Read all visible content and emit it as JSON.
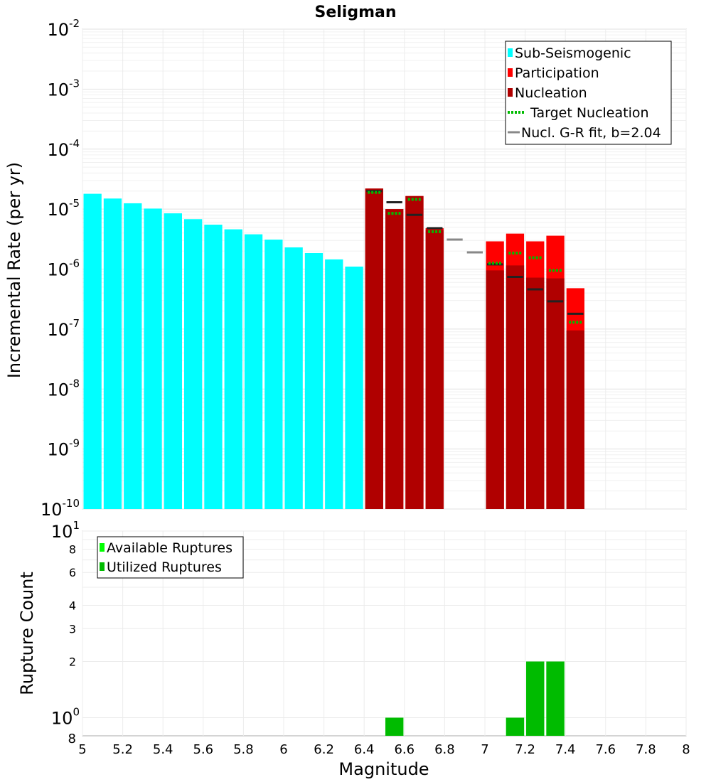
{
  "chart_data": [
    {
      "type": "bar",
      "title": "Seligman",
      "xlabel": "",
      "ylabel": "Incremental Rate (per yr)",
      "yscale": "log",
      "ylim": [
        1e-10,
        0.01
      ],
      "xlim": [
        5,
        8
      ],
      "y_ticks": [
        {
          "base": "10",
          "exp": "-10"
        },
        {
          "base": "10",
          "exp": "-9"
        },
        {
          "base": "10",
          "exp": "-8"
        },
        {
          "base": "10",
          "exp": "-7"
        },
        {
          "base": "10",
          "exp": "-6"
        },
        {
          "base": "10",
          "exp": "-5"
        },
        {
          "base": "10",
          "exp": "-4"
        },
        {
          "base": "10",
          "exp": "-3"
        },
        {
          "base": "10",
          "exp": "-2"
        }
      ],
      "grid": true,
      "legend_position": "top-right",
      "legend": [
        {
          "label": "Sub-Seismogenic",
          "color": "#00ffff",
          "style": "box"
        },
        {
          "label": "Participation",
          "color": "#ff0000",
          "style": "box"
        },
        {
          "label": "Nucleation",
          "color": "#b00000",
          "style": "box"
        },
        {
          "label": "Target Nucleation",
          "color": "#00bb00",
          "style": "dotted"
        },
        {
          "label": "Nucl. G-R fit, b=2.04",
          "color": "#888888",
          "style": "line"
        }
      ],
      "series": [
        {
          "name": "Sub-Seismogenic",
          "color": "#00ffff",
          "x": [
            5.05,
            5.15,
            5.25,
            5.35,
            5.45,
            5.55,
            5.65,
            5.75,
            5.85,
            5.95,
            6.05,
            6.15,
            6.25,
            6.35
          ],
          "values": [
            1.8e-05,
            1.5e-05,
            1.25e-05,
            1.02e-05,
            8.5e-06,
            6.8e-06,
            5.5e-06,
            4.6e-06,
            3.8e-06,
            3.1e-06,
            2.3e-06,
            1.85e-06,
            1.45e-06,
            1.1e-06
          ]
        },
        {
          "name": "Participation",
          "color": "#ff0000",
          "x": [
            6.45,
            6.55,
            6.65,
            6.75,
            7.05,
            7.15,
            7.25,
            7.35,
            7.45
          ],
          "values": [
            2.2e-05,
            1e-05,
            1.65e-05,
            4.8e-06,
            2.9e-06,
            3.9e-06,
            2.9e-06,
            3.6e-06,
            4.8e-07
          ]
        },
        {
          "name": "Nucleation",
          "color": "#b00000",
          "x": [
            6.45,
            6.55,
            6.65,
            6.75,
            7.05,
            7.15,
            7.25,
            7.35,
            7.45
          ],
          "values": [
            2.2e-05,
            1e-05,
            1.65e-05,
            4.5e-06,
            9.5e-07,
            1.15e-06,
            7.2e-07,
            7e-07,
            9.5e-08
          ]
        },
        {
          "name": "Target Nucleation",
          "color": "#00bb00",
          "x": [
            6.45,
            6.55,
            6.65,
            6.75,
            7.05,
            7.15,
            7.25,
            7.35,
            7.45
          ],
          "values": [
            1.9e-05,
            8.5e-06,
            1.45e-05,
            4.2e-06,
            1.25e-06,
            1.85e-06,
            1.55e-06,
            9.5e-07,
            1.3e-07
          ]
        },
        {
          "name": "Nucl. G-R fit, b=2.04",
          "color": "#888888",
          "x": [
            6.45,
            6.55,
            6.65,
            6.75,
            6.85,
            6.95,
            7.05,
            7.15,
            7.25,
            7.35,
            7.45
          ],
          "values": [
            2e-05,
            1.3e-05,
            8e-06,
            4.8e-06,
            3.1e-06,
            1.9e-06,
            1.2e-06,
            7.4e-07,
            4.6e-07,
            2.9e-07,
            1.8e-07
          ]
        }
      ]
    },
    {
      "type": "bar",
      "title": "",
      "xlabel": "Magnitude",
      "ylabel": "Rupture Count",
      "yscale": "log",
      "ylim": [
        0.8,
        10
      ],
      "xlim": [
        5,
        8
      ],
      "x_ticks": [
        "5",
        "5.2",
        "5.4",
        "5.6",
        "5.8",
        "6",
        "6.2",
        "6.4",
        "6.6",
        "6.8",
        "7",
        "7.2",
        "7.4",
        "7.6",
        "7.8",
        "8"
      ],
      "y_major_ticks": [
        {
          "base": "10",
          "exp": "0"
        },
        {
          "base": "10",
          "exp": "1"
        }
      ],
      "y_minor_ticks": [
        "2",
        "3",
        "4",
        "6",
        "8"
      ],
      "y_bottom_label": "8",
      "grid": true,
      "legend_position": "top-left",
      "legend": [
        {
          "label": "Available Ruptures",
          "color": "#00ff00",
          "style": "box"
        },
        {
          "label": "Utilized Ruptures",
          "color": "#00bb00",
          "style": "box"
        }
      ],
      "series": [
        {
          "name": "Available Ruptures",
          "color": "#00ff00",
          "x": [
            6.55,
            7.15,
            7.25,
            7.35
          ],
          "values": [
            1,
            1,
            2,
            2
          ]
        },
        {
          "name": "Utilized Ruptures",
          "color": "#00bb00",
          "x": [
            6.55,
            7.15,
            7.25,
            7.35
          ],
          "values": [
            1,
            1,
            2,
            2
          ]
        }
      ]
    }
  ]
}
